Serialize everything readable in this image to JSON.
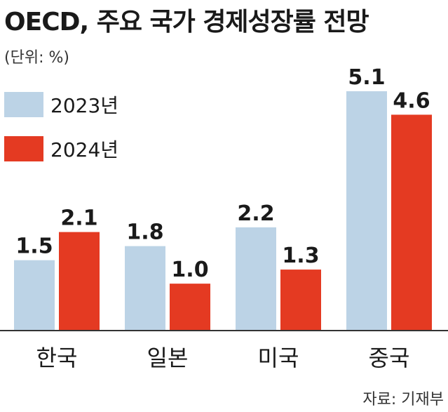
{
  "title": "OECD, 주요 국가 경제성장률 전망",
  "unit_label": "(단위: %)",
  "source": "자료: 기재부",
  "colors": {
    "series_2023": "#bcd3e6",
    "series_2024": "#e43a22",
    "baseline": "#333333"
  },
  "chart_data": {
    "type": "bar",
    "title": "OECD, 주요 국가 경제성장률 전망",
    "categories": [
      "한국",
      "일본",
      "미국",
      "중국"
    ],
    "series": [
      {
        "name": "2023년",
        "values": [
          1.5,
          1.8,
          2.2,
          5.1
        ]
      },
      {
        "name": "2024년",
        "values": [
          2.1,
          1.0,
          1.3,
          4.6
        ]
      }
    ],
    "xlabel": "",
    "ylabel": "",
    "ylim": [
      0,
      5.1
    ],
    "grid": false,
    "legend": "top-left"
  }
}
